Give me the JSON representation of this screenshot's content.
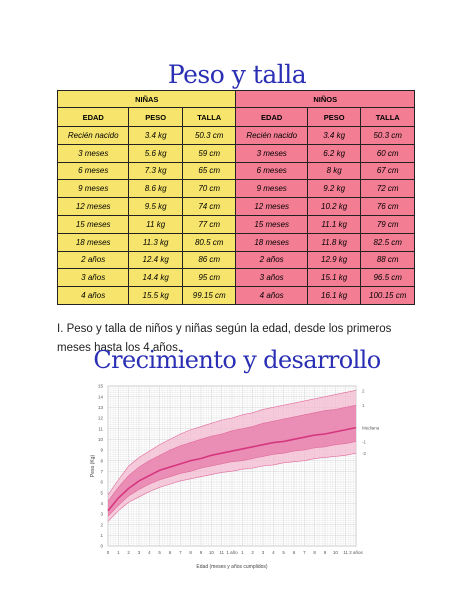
{
  "title": "Peso y talla",
  "table": {
    "girls_label": "NIÑAS",
    "boys_label": "NIÑOS",
    "columns": [
      "EDAD",
      "PESO",
      "TALLA",
      "EDAD",
      "PESO",
      "TALLA"
    ],
    "rows": [
      [
        "Recién nacido",
        "3.4 kg",
        "50.3 cm",
        "Recién nacido",
        "3.4 kg",
        "50.3 cm"
      ],
      [
        "3 meses",
        "5.6 kg",
        "59 cm",
        "3 meses",
        "6.2 kg",
        "60 cm"
      ],
      [
        "6 meses",
        "7.3 kg",
        "65 cm",
        "6 meses",
        "8 kg",
        "67 cm"
      ],
      [
        "9 meses",
        "8.6 kg",
        "70 cm",
        "9 meses",
        "9.2 kg",
        "72 cm"
      ],
      [
        "12 meses",
        "9.5 kg",
        "74 cm",
        "12 meses",
        "10.2 kg",
        "76 cm"
      ],
      [
        "15 meses",
        "11 kg",
        "77 cm",
        "15 meses",
        "11.1 kg",
        "79 cm"
      ],
      [
        "18 meses",
        "11.3 kg",
        "80.5 cm",
        "18 meses",
        "11.8 kg",
        "82.5 cm"
      ],
      [
        "2 años",
        "12.4 kg",
        "86 cm",
        "2 años",
        "12.9 kg",
        "88 cm"
      ],
      [
        "3 años",
        "14.4 kg",
        "95 cm",
        "3 años",
        "15.1 kg",
        "96.5 cm"
      ],
      [
        "4 años",
        "15.5 kg",
        "99.15 cm",
        "4 años",
        "16.1 kg",
        "100.15 cm"
      ]
    ]
  },
  "caption": "I. Peso y talla de niños y niñas según la edad, desde los primeros meses hasta los 4 años.",
  "section_title": "Crecimiento y desarrollo",
  "colors": {
    "title": "#2a2fb4",
    "girls_header": "#f6e46c",
    "boys_header": "#f37d93",
    "chart_line": "#d6387f",
    "chart_band": "#e77aa9"
  },
  "chart_data": {
    "type": "line",
    "xlabel": "Edad (meses y años cumplidos)",
    "ylabel": "Peso (Kg)",
    "ylim": [
      0,
      15
    ],
    "yticks": [
      "0",
      "1",
      "2",
      "3",
      "4",
      "5",
      "6",
      "7",
      "8",
      "9",
      "10",
      "11",
      "12",
      "13",
      "14",
      "15"
    ],
    "xticks": [
      "0",
      "1",
      "2",
      "3",
      "4",
      "5",
      "6",
      "7",
      "8",
      "9",
      "10",
      "11",
      "1 año",
      "1",
      "2",
      "3",
      "4",
      "5",
      "6",
      "7",
      "8",
      "9",
      "10",
      "11",
      "2 años"
    ],
    "x": [
      0,
      1,
      2,
      3,
      4,
      5,
      6,
      7,
      8,
      9,
      10,
      11,
      12,
      13,
      14,
      15,
      16,
      17,
      18,
      19,
      20,
      21,
      22,
      23,
      24
    ],
    "series": [
      {
        "name": "2",
        "values": [
          4.8,
          6.2,
          7.5,
          8.3,
          8.9,
          9.5,
          10.0,
          10.5,
          10.9,
          11.2,
          11.5,
          11.8,
          12.0,
          12.3,
          12.5,
          12.8,
          13.0,
          13.2,
          13.4,
          13.6,
          13.8,
          14.0,
          14.2,
          14.4,
          14.6
        ]
      },
      {
        "name": "1",
        "values": [
          4.2,
          5.5,
          6.6,
          7.4,
          8.0,
          8.5,
          9.0,
          9.4,
          9.7,
          10.0,
          10.3,
          10.5,
          10.8,
          11.0,
          11.2,
          11.5,
          11.7,
          11.9,
          12.1,
          12.3,
          12.5,
          12.7,
          12.8,
          13.0,
          13.2
        ]
      },
      {
        "name": "Mediana",
        "values": [
          3.3,
          4.5,
          5.4,
          6.1,
          6.6,
          7.1,
          7.4,
          7.7,
          8.0,
          8.2,
          8.5,
          8.7,
          8.9,
          9.1,
          9.3,
          9.5,
          9.7,
          9.8,
          10.0,
          10.2,
          10.4,
          10.5,
          10.7,
          10.9,
          11.1
        ]
      },
      {
        "name": "-1",
        "values": [
          2.8,
          3.8,
          4.7,
          5.3,
          5.8,
          6.2,
          6.5,
          6.8,
          7.0,
          7.3,
          7.5,
          7.7,
          7.9,
          8.0,
          8.2,
          8.4,
          8.6,
          8.7,
          8.9,
          9.0,
          9.2,
          9.3,
          9.5,
          9.6,
          9.8
        ]
      },
      {
        "name": "-2",
        "values": [
          2.3,
          3.3,
          4.1,
          4.6,
          5.1,
          5.5,
          5.8,
          6.1,
          6.3,
          6.5,
          6.7,
          6.9,
          7.0,
          7.2,
          7.3,
          7.5,
          7.6,
          7.8,
          7.9,
          8.0,
          8.2,
          8.3,
          8.4,
          8.5,
          8.7
        ]
      }
    ]
  }
}
